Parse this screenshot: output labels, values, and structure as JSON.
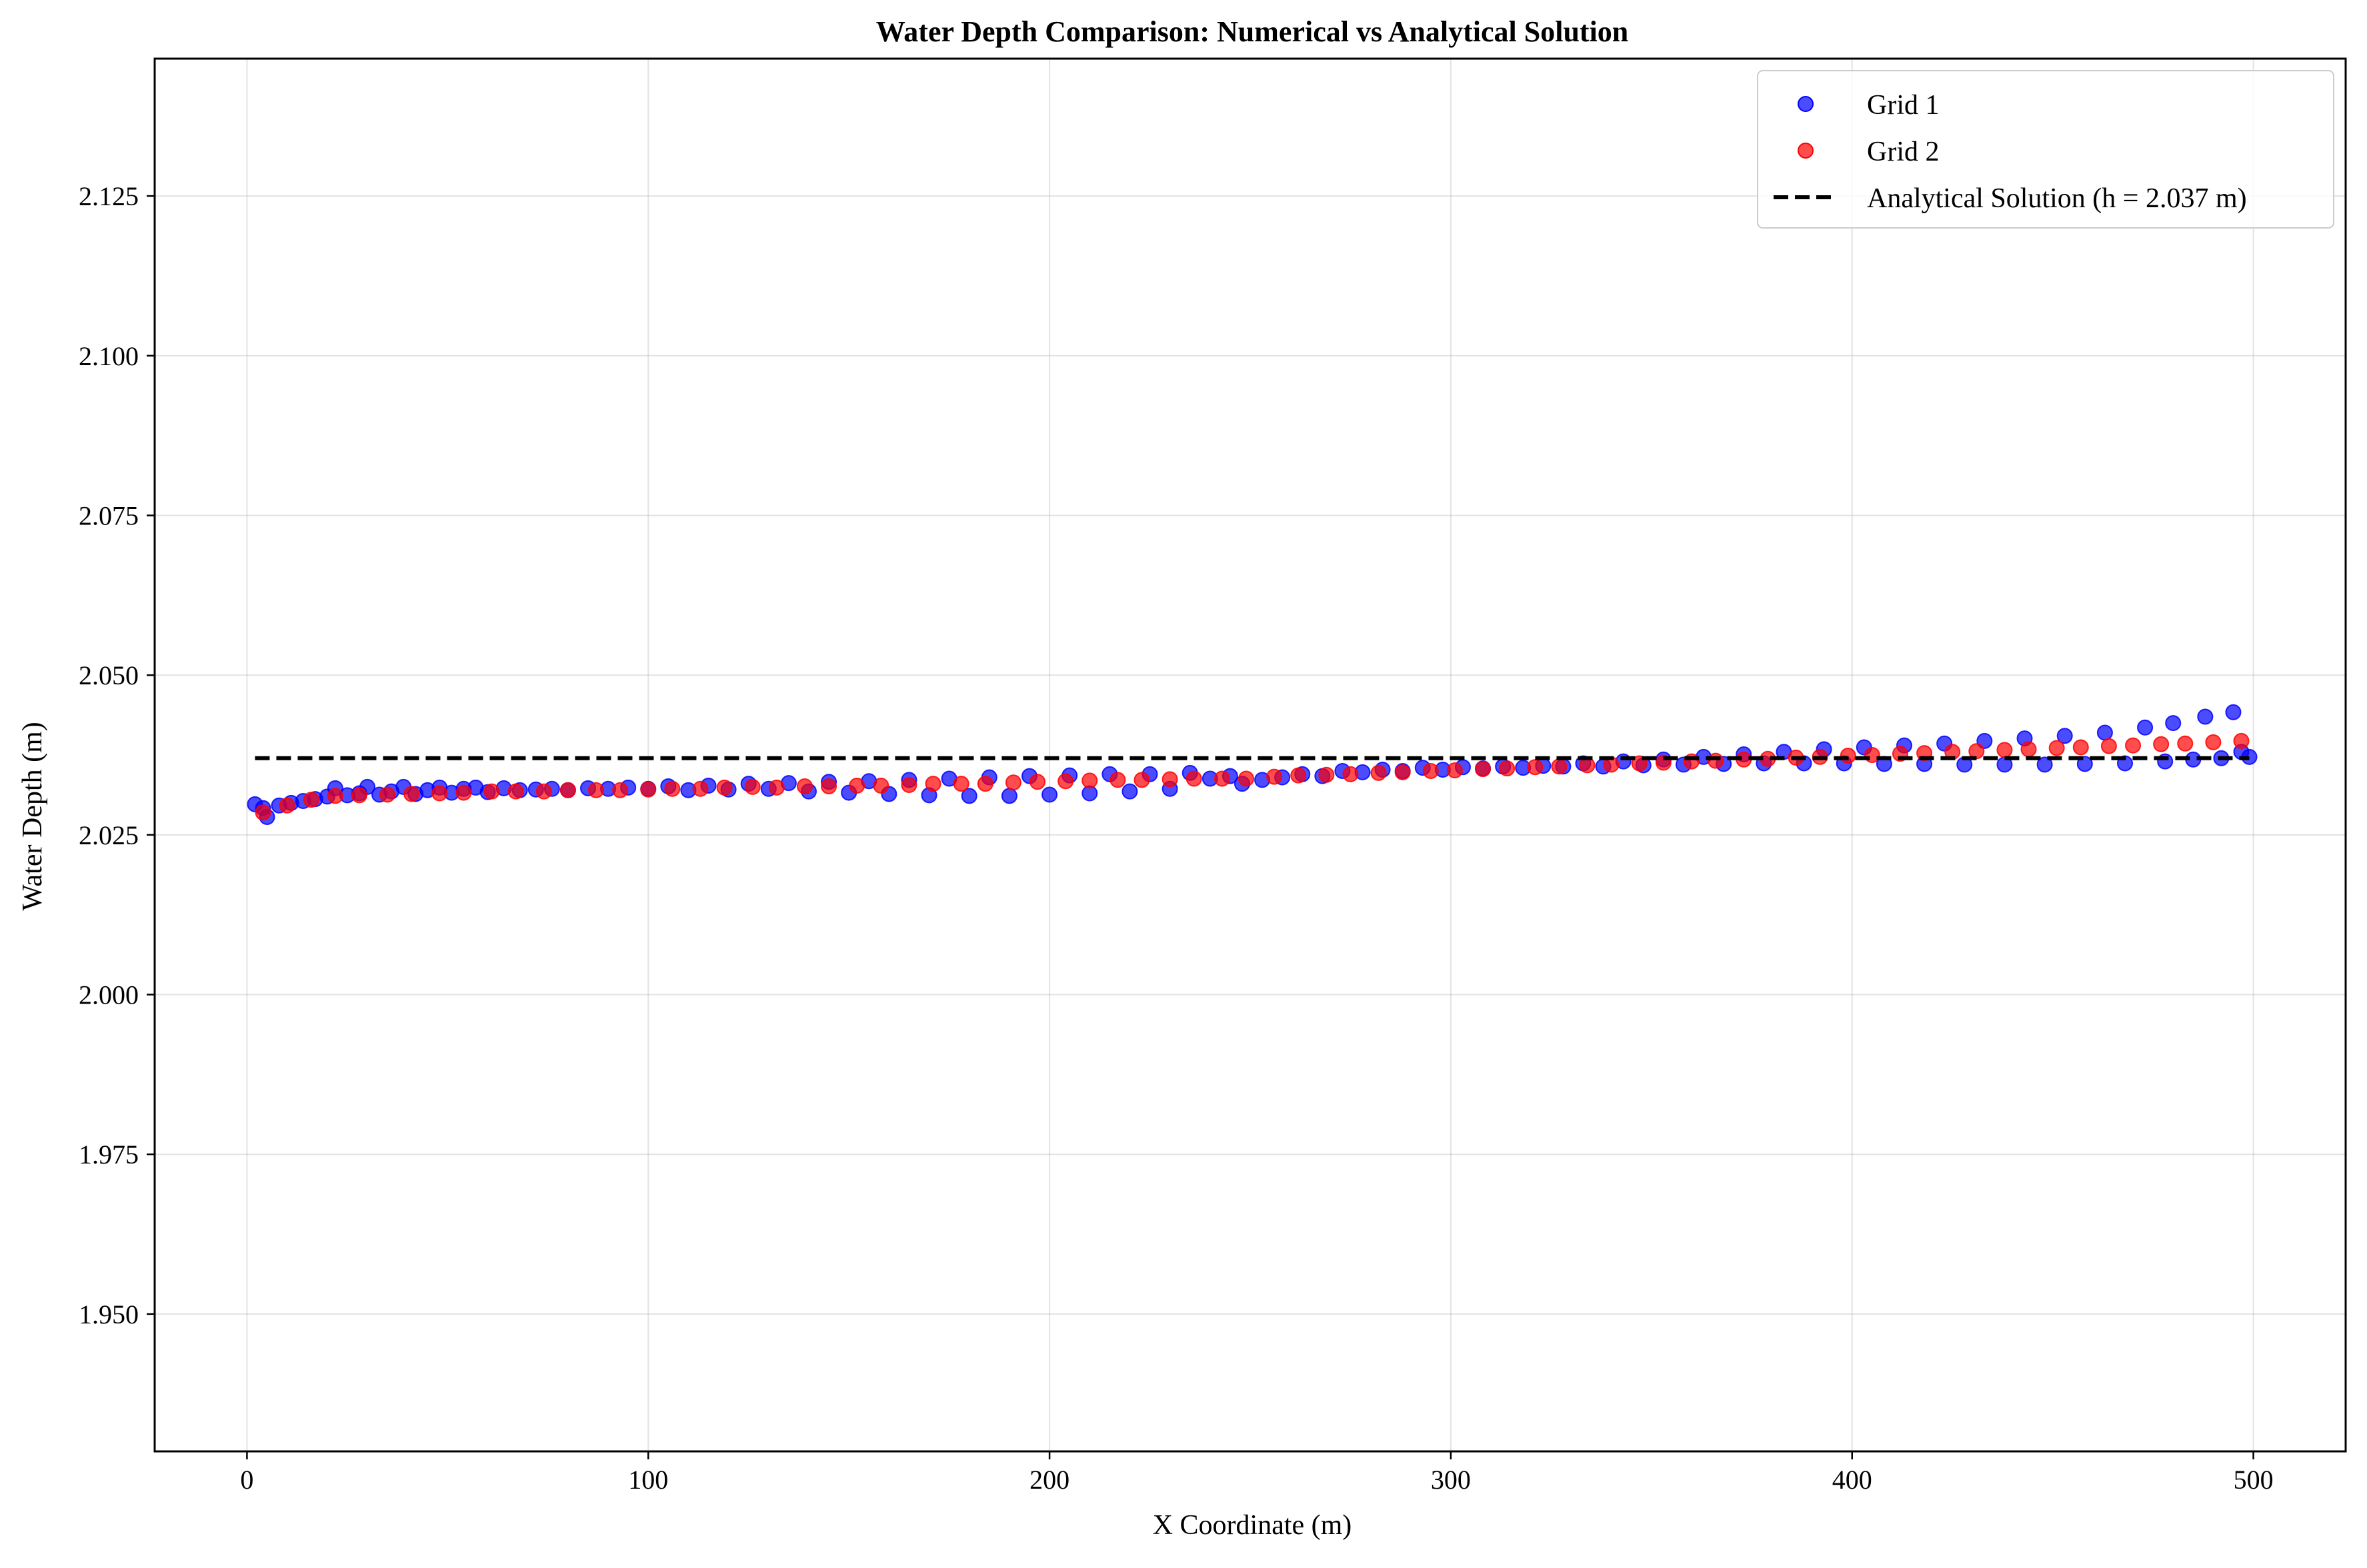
{
  "chart_data": {
    "type": "scatter",
    "title": "Water Depth Comparison: Numerical vs Analytical Solution",
    "xlabel": "X Coordinate (m)",
    "ylabel": "Water Depth (m)",
    "xlim": [
      -23,
      523
    ],
    "ylim": [
      1.9285,
      2.1465
    ],
    "x_ticks": [
      0,
      100,
      200,
      300,
      400,
      500
    ],
    "x_tick_labels": [
      "0",
      "100",
      "200",
      "300",
      "400",
      "500"
    ],
    "y_ticks": [
      1.95,
      1.975,
      2.0,
      2.025,
      2.05,
      2.075,
      2.1,
      2.125
    ],
    "y_tick_labels": [
      "1.950",
      "1.975",
      "2.000",
      "2.025",
      "2.050",
      "2.075",
      "2.100",
      "2.125"
    ],
    "grid": true,
    "legend_position": "top-right",
    "series": [
      {
        "name": "Grid 1",
        "kind": "scatter",
        "color": "#0000ff",
        "opacity": 0.7,
        "points": [
          [
            2,
            2.0298
          ],
          [
            4,
            2.0292
          ],
          [
            5,
            2.0278
          ],
          [
            8,
            2.0296
          ],
          [
            11,
            2.03
          ],
          [
            14,
            2.0303
          ],
          [
            17,
            2.0306
          ],
          [
            20,
            2.031
          ],
          [
            22,
            2.0323
          ],
          [
            25,
            2.0312
          ],
          [
            28,
            2.0315
          ],
          [
            30,
            2.0325
          ],
          [
            33,
            2.0313
          ],
          [
            36,
            2.0318
          ],
          [
            39,
            2.0325
          ],
          [
            42,
            2.0314
          ],
          [
            45,
            2.032
          ],
          [
            48,
            2.0324
          ],
          [
            51,
            2.0316
          ],
          [
            54,
            2.0322
          ],
          [
            57,
            2.0324
          ],
          [
            60,
            2.0317
          ],
          [
            64,
            2.0323
          ],
          [
            68,
            2.032
          ],
          [
            72,
            2.0321
          ],
          [
            76,
            2.0322
          ],
          [
            80,
            2.032
          ],
          [
            85,
            2.0323
          ],
          [
            90,
            2.0322
          ],
          [
            95,
            2.0324
          ],
          [
            100,
            2.0322
          ],
          [
            105,
            2.0326
          ],
          [
            110,
            2.032
          ],
          [
            115,
            2.0327
          ],
          [
            120,
            2.0321
          ],
          [
            125,
            2.033
          ],
          [
            130,
            2.0322
          ],
          [
            135,
            2.0331
          ],
          [
            140,
            2.0318
          ],
          [
            145,
            2.0333
          ],
          [
            150,
            2.0316
          ],
          [
            155,
            2.0334
          ],
          [
            160,
            2.0314
          ],
          [
            165,
            2.0336
          ],
          [
            170,
            2.0312
          ],
          [
            175,
            2.0338
          ],
          [
            180,
            2.0311
          ],
          [
            185,
            2.034
          ],
          [
            190,
            2.0311
          ],
          [
            195,
            2.0342
          ],
          [
            200,
            2.0313
          ],
          [
            205,
            2.0343
          ],
          [
            210,
            2.0315
          ],
          [
            215,
            2.0345
          ],
          [
            220,
            2.0318
          ],
          [
            225,
            2.0345
          ],
          [
            230,
            2.0322
          ],
          [
            235,
            2.0347
          ],
          [
            240,
            2.0338
          ],
          [
            245,
            2.0342
          ],
          [
            248,
            2.033
          ],
          [
            253,
            2.0336
          ],
          [
            258,
            2.034
          ],
          [
            263,
            2.0345
          ],
          [
            268,
            2.0342
          ],
          [
            273,
            2.035
          ],
          [
            278,
            2.0348
          ],
          [
            283,
            2.0352
          ],
          [
            288,
            2.035
          ],
          [
            293,
            2.0355
          ],
          [
            298,
            2.0352
          ],
          [
            303,
            2.0356
          ],
          [
            308,
            2.0354
          ],
          [
            313,
            2.0357
          ],
          [
            318,
            2.0355
          ],
          [
            323,
            2.0358
          ],
          [
            328,
            2.0357
          ],
          [
            333,
            2.0362
          ],
          [
            338,
            2.0357
          ],
          [
            343,
            2.0365
          ],
          [
            348,
            2.0359
          ],
          [
            353,
            2.0368
          ],
          [
            358,
            2.036
          ],
          [
            363,
            2.0372
          ],
          [
            368,
            2.0361
          ],
          [
            373,
            2.0376
          ],
          [
            378,
            2.0362
          ],
          [
            383,
            2.038
          ],
          [
            388,
            2.0362
          ],
          [
            393,
            2.0384
          ],
          [
            398,
            2.0362
          ],
          [
            403,
            2.0387
          ],
          [
            408,
            2.0361
          ],
          [
            413,
            2.039
          ],
          [
            418,
            2.0361
          ],
          [
            423,
            2.0393
          ],
          [
            428,
            2.036
          ],
          [
            433,
            2.0397
          ],
          [
            438,
            2.036
          ],
          [
            443,
            2.0401
          ],
          [
            448,
            2.036
          ],
          [
            453,
            2.0405
          ],
          [
            458,
            2.0361
          ],
          [
            463,
            2.041
          ],
          [
            468,
            2.0362
          ],
          [
            473,
            2.0418
          ],
          [
            478,
            2.0365
          ],
          [
            480,
            2.0425
          ],
          [
            485,
            2.0368
          ],
          [
            488,
            2.0435
          ],
          [
            492,
            2.037
          ],
          [
            495,
            2.0442
          ],
          [
            497,
            2.038
          ],
          [
            499,
            2.0372
          ]
        ]
      },
      {
        "name": "Grid 2",
        "kind": "scatter",
        "color": "#ff0000",
        "opacity": 0.7,
        "points": [
          [
            4,
            2.0285
          ],
          [
            10,
            2.0296
          ],
          [
            16,
            2.0305
          ],
          [
            22,
            2.0311
          ],
          [
            28,
            2.0312
          ],
          [
            35,
            2.0313
          ],
          [
            41,
            2.0314
          ],
          [
            48,
            2.0315
          ],
          [
            54,
            2.0316
          ],
          [
            61,
            2.0318
          ],
          [
            67,
            2.0318
          ],
          [
            74,
            2.0318
          ],
          [
            80,
            2.032
          ],
          [
            87,
            2.032
          ],
          [
            93,
            2.032
          ],
          [
            100,
            2.0321
          ],
          [
            106,
            2.0322
          ],
          [
            113,
            2.0322
          ],
          [
            119,
            2.0324
          ],
          [
            126,
            2.0325
          ],
          [
            132,
            2.0324
          ],
          [
            139,
            2.0326
          ],
          [
            145,
            2.0326
          ],
          [
            152,
            2.0327
          ],
          [
            158,
            2.0327
          ],
          [
            165,
            2.0328
          ],
          [
            171,
            2.033
          ],
          [
            178,
            2.033
          ],
          [
            184,
            2.033
          ],
          [
            191,
            2.0332
          ],
          [
            197,
            2.0333
          ],
          [
            204,
            2.0334
          ],
          [
            210,
            2.0335
          ],
          [
            217,
            2.0336
          ],
          [
            223,
            2.0336
          ],
          [
            230,
            2.0337
          ],
          [
            236,
            2.0338
          ],
          [
            243,
            2.0338
          ],
          [
            249,
            2.0338
          ],
          [
            256,
            2.0341
          ],
          [
            262,
            2.0343
          ],
          [
            269,
            2.0344
          ],
          [
            275,
            2.0345
          ],
          [
            282,
            2.0347
          ],
          [
            288,
            2.0348
          ],
          [
            295,
            2.035
          ],
          [
            301,
            2.0351
          ],
          [
            308,
            2.0353
          ],
          [
            314,
            2.0354
          ],
          [
            321,
            2.0356
          ],
          [
            327,
            2.0357
          ],
          [
            334,
            2.0359
          ],
          [
            340,
            2.036
          ],
          [
            347,
            2.0362
          ],
          [
            353,
            2.0363
          ],
          [
            360,
            2.0365
          ],
          [
            366,
            2.0366
          ],
          [
            373,
            2.0368
          ],
          [
            379,
            2.0369
          ],
          [
            386,
            2.0371
          ],
          [
            392,
            2.0372
          ],
          [
            399,
            2.0374
          ],
          [
            405,
            2.0375
          ],
          [
            412,
            2.0377
          ],
          [
            418,
            2.0378
          ],
          [
            425,
            2.038
          ],
          [
            431,
            2.0381
          ],
          [
            438,
            2.0383
          ],
          [
            444,
            2.0384
          ],
          [
            451,
            2.0386
          ],
          [
            457,
            2.0387
          ],
          [
            464,
            2.0389
          ],
          [
            470,
            2.039
          ],
          [
            477,
            2.0392
          ],
          [
            483,
            2.0393
          ],
          [
            490,
            2.0395
          ],
          [
            497,
            2.0397
          ]
        ]
      },
      {
        "name": "Analytical Solution (h = 2.037 m)",
        "kind": "line",
        "style": "dashed",
        "color": "#000000",
        "x": [
          2,
          499
        ],
        "y": [
          2.037,
          2.037
        ]
      }
    ]
  }
}
